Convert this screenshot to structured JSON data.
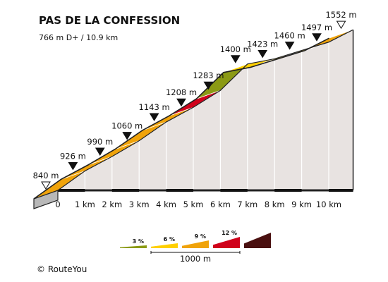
{
  "chart_data": {
    "type": "area",
    "title": "PAS DE LA CONFESSION",
    "subtitle": "766 m D+ / 10.9 km",
    "x_unit": "km",
    "x": [
      0,
      1,
      2,
      3,
      4,
      5,
      6,
      7,
      8,
      9,
      10,
      10.9
    ],
    "elevation_m": [
      840,
      926,
      990,
      1060,
      1143,
      1208,
      1283,
      1400,
      1423,
      1460,
      1497,
      1552
    ],
    "elevation_labels": [
      "840 m",
      "926 m",
      "990 m",
      "1060 m",
      "1143 m",
      "1208 m",
      "1283 m",
      "1400 m",
      "1423 m",
      "1460 m",
      "1497 m",
      "1552 m"
    ],
    "x_tick_values": [
      0,
      1,
      2,
      3,
      4,
      5,
      6,
      7,
      8,
      9,
      10
    ],
    "x_tick_labels": [
      "0",
      "1 km",
      "2 km",
      "3 km",
      "4 km",
      "5 km",
      "6 km",
      "7 km",
      "8 km",
      "9 km",
      "10 km"
    ],
    "segment_colors": [
      "#f0a30a",
      "#f0a30a",
      "#f0a30a",
      "#f0a30a",
      "#f0a30a",
      "#f0a30a",
      "#d0021b",
      "#8b9a14",
      "#ffd000",
      "#ffd000",
      "#ffd000",
      "#f0a30a"
    ],
    "legend": {
      "items": [
        {
          "label": "3 %",
          "color": "#8b9a14"
        },
        {
          "label": "6 %",
          "color": "#ffd000"
        },
        {
          "label": "9 %",
          "color": "#f0a30a"
        },
        {
          "label": "12 %",
          "color": "#d0021b"
        },
        {
          "label": "",
          "color": "#4a1010"
        }
      ],
      "scale_label": "1000 m"
    }
  },
  "footer": {
    "copyright": "©  RouteYou"
  }
}
